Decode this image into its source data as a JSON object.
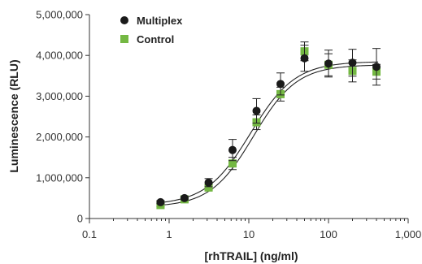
{
  "chart_data": {
    "type": "scatter",
    "xlabel": "[rhTRAIL] (ng/ml)",
    "ylabel": "Luminescence (RLU)",
    "x_scale": "log",
    "xlim": [
      0.1,
      1000
    ],
    "ylim": [
      0,
      5000000
    ],
    "x_ticks": [
      0.1,
      1,
      10,
      100,
      1000
    ],
    "x_tick_labels": [
      "0.1",
      "1",
      "10",
      "100",
      "1,000"
    ],
    "y_ticks": [
      0,
      1000000,
      2000000,
      3000000,
      4000000,
      5000000
    ],
    "y_tick_labels": [
      "0",
      "1,000,000",
      "2,000,000",
      "3,000,000",
      "4,000,000",
      "5,000,000"
    ],
    "grid": false,
    "legend_position": "top-left",
    "series": [
      {
        "name": "Multiplex",
        "marker": "circle",
        "color": "#1a1a1a",
        "points": [
          {
            "x": 0.78,
            "y": 400000,
            "err": 40000
          },
          {
            "x": 1.56,
            "y": 500000,
            "err": 40000
          },
          {
            "x": 3.13,
            "y": 880000,
            "err": 100000
          },
          {
            "x": 6.25,
            "y": 1680000,
            "err": 260000
          },
          {
            "x": 12.5,
            "y": 2640000,
            "err": 300000
          },
          {
            "x": 25,
            "y": 3300000,
            "err": 270000
          },
          {
            "x": 50,
            "y": 3930000,
            "err": 320000
          },
          {
            "x": 100,
            "y": 3800000,
            "err": 330000
          },
          {
            "x": 200,
            "y": 3820000,
            "err": 330000
          },
          {
            "x": 400,
            "y": 3720000,
            "err": 450000
          }
        ],
        "fit": {
          "bottom": 330000,
          "top": 3850000,
          "ec50": 10.5,
          "hill": 1.55
        }
      },
      {
        "name": "Control",
        "marker": "square",
        "color": "#74b843",
        "points": [
          {
            "x": 0.78,
            "y": 330000,
            "err": 40000
          },
          {
            "x": 1.56,
            "y": 470000,
            "err": 40000
          },
          {
            "x": 3.13,
            "y": 760000,
            "err": 60000
          },
          {
            "x": 6.25,
            "y": 1350000,
            "err": 150000
          },
          {
            "x": 12.5,
            "y": 2360000,
            "err": 180000
          },
          {
            "x": 25,
            "y": 3050000,
            "err": 170000
          },
          {
            "x": 50,
            "y": 4100000,
            "err": 230000
          },
          {
            "x": 100,
            "y": 3770000,
            "err": 270000
          },
          {
            "x": 200,
            "y": 3620000,
            "err": 270000
          },
          {
            "x": 400,
            "y": 3600000,
            "err": 180000
          }
        ],
        "fit": {
          "bottom": 280000,
          "top": 3770000,
          "ec50": 11.5,
          "hill": 1.6
        }
      }
    ]
  }
}
